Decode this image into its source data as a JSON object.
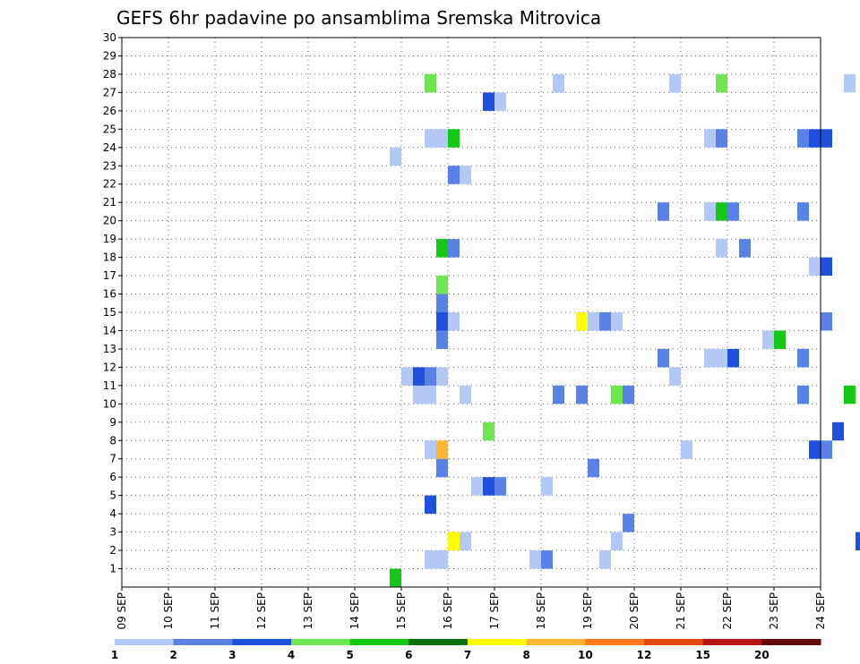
{
  "chart_data": {
    "type": "heatmap",
    "title": "GEFS 6hr padavine po ansamblima Sremska Mitrovica",
    "x_ticks": [
      "09 SEP",
      "10 SEP",
      "11 SEP",
      "12 SEP",
      "13 SEP",
      "14 SEP",
      "15 SEP",
      "16 SEP",
      "17 SEP",
      "18 SEP",
      "19 SEP",
      "20 SEP",
      "21 SEP",
      "22 SEP",
      "23 SEP",
      "24 SEP"
    ],
    "y_ticks": [
      "1",
      "2",
      "3",
      "4",
      "5",
      "6",
      "7",
      "8",
      "9",
      "10",
      "11",
      "12",
      "13",
      "14",
      "15",
      "16",
      "17",
      "18",
      "19",
      "20",
      "21",
      "22",
      "23",
      "24",
      "25",
      "26",
      "27",
      "28",
      "29",
      "30"
    ],
    "xlim": [
      "09 SEP 00Z",
      "24 SEP 00Z"
    ],
    "ylim": [
      0,
      30
    ],
    "grid": true,
    "colorbar": {
      "labels": [
        "1",
        "2",
        "3",
        "4",
        "5",
        "6",
        "7",
        "8",
        "10",
        "12",
        "15",
        "20"
      ],
      "colors": [
        "#b4c8f5",
        "#5a82e6",
        "#1e50dc",
        "#6ee650",
        "#14c814",
        "#0a6e0a",
        "#ffff00",
        "#ffb432",
        "#ff781e",
        "#e64614",
        "#b41414",
        "#640a0a"
      ]
    },
    "cells": [
      {
        "t": "14 SEP 18Z",
        "m": 0,
        "c": 4
      },
      {
        "t": "15 SEP 12Z",
        "m": 1,
        "c": 0
      },
      {
        "t": "15 SEP 18Z",
        "m": 1,
        "c": 0
      },
      {
        "t": "17 SEP 18Z",
        "m": 1,
        "c": 0
      },
      {
        "t": "18 SEP 00Z",
        "m": 1,
        "c": 1
      },
      {
        "t": "19 SEP 06Z",
        "m": 1,
        "c": 0
      },
      {
        "t": "16 SEP 00Z",
        "m": 2,
        "c": 6
      },
      {
        "t": "16 SEP 06Z",
        "m": 2,
        "c": 0
      },
      {
        "t": "19 SEP 12Z",
        "m": 2,
        "c": 0
      },
      {
        "t": "24 SEP 18Z",
        "m": 2,
        "c": 2
      },
      {
        "t": "19 SEP 18Z",
        "m": 3,
        "c": 1
      },
      {
        "t": "15 SEP 12Z",
        "m": 4,
        "c": 2
      },
      {
        "t": "16 SEP 12Z",
        "m": 5,
        "c": 0
      },
      {
        "t": "16 SEP 18Z",
        "m": 5,
        "c": 2
      },
      {
        "t": "17 SEP 00Z",
        "m": 5,
        "c": 1
      },
      {
        "t": "18 SEP 00Z",
        "m": 5,
        "c": 0
      },
      {
        "t": "15 SEP 18Z",
        "m": 6,
        "c": 1
      },
      {
        "t": "19 SEP 00Z",
        "m": 6,
        "c": 1
      },
      {
        "t": "15 SEP 12Z",
        "m": 7,
        "c": 0
      },
      {
        "t": "15 SEP 18Z",
        "m": 7,
        "c": 7
      },
      {
        "t": "21 SEP 00Z",
        "m": 7,
        "c": 0
      },
      {
        "t": "23 SEP 18Z",
        "m": 7,
        "c": 2
      },
      {
        "t": "24 SEP 00Z",
        "m": 7,
        "c": 1
      },
      {
        "t": "16 SEP 18Z",
        "m": 8,
        "c": 3
      },
      {
        "t": "24 SEP 06Z",
        "m": 8,
        "c": 2
      },
      {
        "t": "15 SEP 06Z",
        "m": 10,
        "c": 0
      },
      {
        "t": "15 SEP 12Z",
        "m": 10,
        "c": 0
      },
      {
        "t": "16 SEP 06Z",
        "m": 10,
        "c": 0
      },
      {
        "t": "18 SEP 06Z",
        "m": 10,
        "c": 1
      },
      {
        "t": "18 SEP 18Z",
        "m": 10,
        "c": 1
      },
      {
        "t": "19 SEP 12Z",
        "m": 10,
        "c": 3
      },
      {
        "t": "19 SEP 18Z",
        "m": 10,
        "c": 1
      },
      {
        "t": "23 SEP 12Z",
        "m": 10,
        "c": 1
      },
      {
        "t": "24 SEP 12Z",
        "m": 10,
        "c": 4
      },
      {
        "t": "15 SEP 00Z",
        "m": 11,
        "c": 0
      },
      {
        "t": "15 SEP 06Z",
        "m": 11,
        "c": 2
      },
      {
        "t": "15 SEP 12Z",
        "m": 11,
        "c": 1
      },
      {
        "t": "15 SEP 18Z",
        "m": 11,
        "c": 0
      },
      {
        "t": "20 SEP 18Z",
        "m": 11,
        "c": 0
      },
      {
        "t": "20 SEP 12Z",
        "m": 12,
        "c": 1
      },
      {
        "t": "21 SEP 12Z",
        "m": 12,
        "c": 0
      },
      {
        "t": "21 SEP 18Z",
        "m": 12,
        "c": 0
      },
      {
        "t": "22 SEP 00Z",
        "m": 12,
        "c": 2
      },
      {
        "t": "23 SEP 12Z",
        "m": 12,
        "c": 1
      },
      {
        "t": "15 SEP 18Z",
        "m": 13,
        "c": 1
      },
      {
        "t": "22 SEP 18Z",
        "m": 13,
        "c": 0
      },
      {
        "t": "23 SEP 00Z",
        "m": 13,
        "c": 4
      },
      {
        "t": "15 SEP 18Z",
        "m": 14,
        "c": 2
      },
      {
        "t": "16 SEP 00Z",
        "m": 14,
        "c": 0
      },
      {
        "t": "18 SEP 18Z",
        "m": 14,
        "c": 6
      },
      {
        "t": "19 SEP 00Z",
        "m": 14,
        "c": 0
      },
      {
        "t": "19 SEP 06Z",
        "m": 14,
        "c": 1
      },
      {
        "t": "19 SEP 12Z",
        "m": 14,
        "c": 0
      },
      {
        "t": "24 SEP 00Z",
        "m": 14,
        "c": 1
      },
      {
        "t": "15 SEP 18Z",
        "m": 15,
        "c": 1
      },
      {
        "t": "15 SEP 18Z",
        "m": 16,
        "c": 3
      },
      {
        "t": "23 SEP 18Z",
        "m": 17,
        "c": 0
      },
      {
        "t": "24 SEP 00Z",
        "m": 17,
        "c": 2
      },
      {
        "t": "15 SEP 18Z",
        "m": 18,
        "c": 4
      },
      {
        "t": "16 SEP 00Z",
        "m": 18,
        "c": 1
      },
      {
        "t": "21 SEP 18Z",
        "m": 18,
        "c": 0
      },
      {
        "t": "22 SEP 06Z",
        "m": 18,
        "c": 1
      },
      {
        "t": "20 SEP 12Z",
        "m": 20,
        "c": 1
      },
      {
        "t": "21 SEP 12Z",
        "m": 20,
        "c": 0
      },
      {
        "t": "21 SEP 18Z",
        "m": 20,
        "c": 4
      },
      {
        "t": "22 SEP 00Z",
        "m": 20,
        "c": 1
      },
      {
        "t": "23 SEP 12Z",
        "m": 20,
        "c": 1
      },
      {
        "t": "16 SEP 00Z",
        "m": 22,
        "c": 1
      },
      {
        "t": "16 SEP 06Z",
        "m": 22,
        "c": 0
      },
      {
        "t": "14 SEP 18Z",
        "m": 23,
        "c": 0
      },
      {
        "t": "15 SEP 12Z",
        "m": 24,
        "c": 0
      },
      {
        "t": "15 SEP 18Z",
        "m": 24,
        "c": 0
      },
      {
        "t": "16 SEP 00Z",
        "m": 24,
        "c": 4
      },
      {
        "t": "21 SEP 12Z",
        "m": 24,
        "c": 0
      },
      {
        "t": "21 SEP 18Z",
        "m": 24,
        "c": 1
      },
      {
        "t": "23 SEP 12Z",
        "m": 24,
        "c": 1
      },
      {
        "t": "23 SEP 18Z",
        "m": 24,
        "c": 2
      },
      {
        "t": "24 SEP 00Z",
        "m": 24,
        "c": 2
      },
      {
        "t": "16 SEP 18Z",
        "m": 26,
        "c": 2
      },
      {
        "t": "17 SEP 00Z",
        "m": 26,
        "c": 0
      },
      {
        "t": "15 SEP 12Z",
        "m": 27,
        "c": 3
      },
      {
        "t": "18 SEP 06Z",
        "m": 27,
        "c": 0
      },
      {
        "t": "20 SEP 18Z",
        "m": 27,
        "c": 0
      },
      {
        "t": "21 SEP 18Z",
        "m": 27,
        "c": 3
      },
      {
        "t": "24 SEP 12Z",
        "m": 27,
        "c": 0
      }
    ]
  }
}
